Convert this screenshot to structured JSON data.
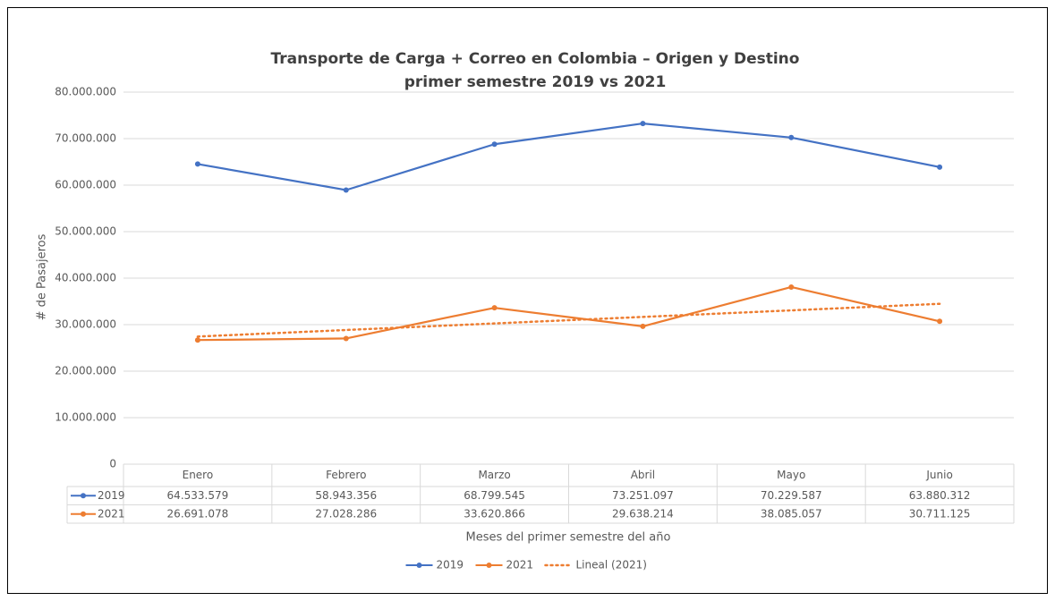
{
  "chart_data": {
    "type": "line",
    "title": "Transporte de Carga + Correo en Colombia – Origen y Destino",
    "subtitle": "primer semestre 2019 vs 2021",
    "x_label": "Meses del primer semestre del año",
    "y_label": "# de Pasajeros",
    "categories": [
      "Enero",
      "Febrero",
      "Marzo",
      "Abril",
      "Mayo",
      "Junio"
    ],
    "series": [
      {
        "name": "2019",
        "color": "#4472c4",
        "marker": true,
        "in_table": true,
        "values": [
          64533579,
          58943356,
          68799545,
          73251097,
          70229587,
          63880312
        ],
        "value_labels": [
          "64.533.579",
          "58.943.356",
          "68.799.545",
          "73.251.097",
          "70.229.587",
          "63.880.312"
        ]
      },
      {
        "name": "2021",
        "color": "#ed7d31",
        "marker": true,
        "in_table": true,
        "values": [
          26691078,
          27028286,
          33620866,
          29638214,
          38085057,
          30711125
        ],
        "value_labels": [
          "26.691.078",
          "27.028.286",
          "33.620.866",
          "29.638.214",
          "38.085.057",
          "30.711.125"
        ]
      },
      {
        "name": "Lineal (2021)",
        "color": "#ed7d31",
        "marker": false,
        "in_table": false,
        "dash": "dotted",
        "values": [
          27440000,
          28850000,
          30260000,
          31660000,
          33070000,
          34480000
        ]
      }
    ],
    "ylim": [
      0,
      80000000
    ],
    "yticks": [
      0,
      {
        "value": 10000000,
        "label": "10.000.000"
      },
      {
        "value": 20000000,
        "label": "20.000.000"
      },
      {
        "value": 30000000,
        "label": "30.000.000"
      },
      {
        "value": 40000000,
        "label": "40.000.000"
      },
      {
        "value": 50000000,
        "label": "50.000.000"
      },
      {
        "value": 60000000,
        "label": "60.000.000"
      },
      {
        "value": 70000000,
        "label": "70.000.000"
      },
      {
        "value": 80000000,
        "label": "80.000.000"
      }
    ],
    "grid": true,
    "legend": "bottom"
  }
}
